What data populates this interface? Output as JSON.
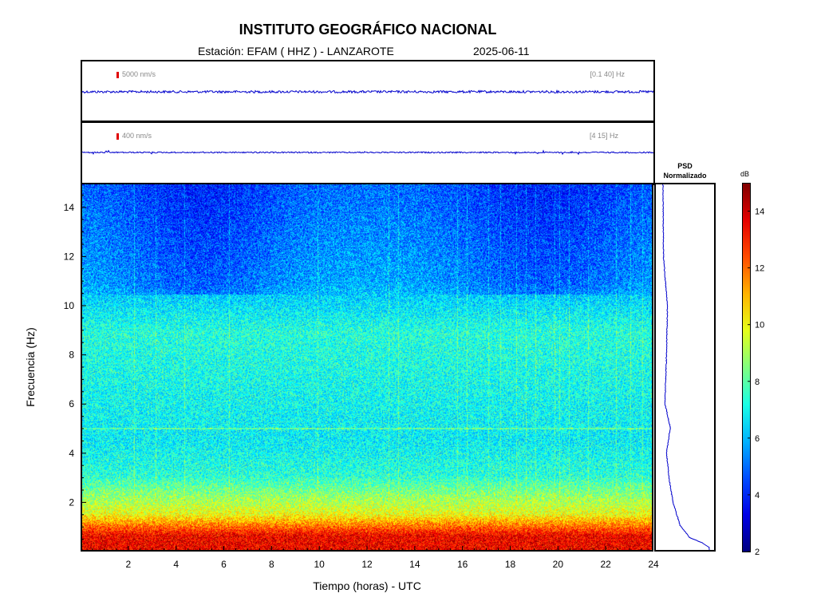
{
  "header": {
    "title": "INSTITUTO GEOGRÁFICO NACIONAL",
    "station": "Estación:  EFAM ( HHZ ) - LANZAROTE",
    "date": "2025-06-11"
  },
  "traces": [
    {
      "scale_label": "5000 nm/s",
      "band_label": "[0.1 40] Hz",
      "color": "#0000cc"
    },
    {
      "scale_label": "400 nm/s",
      "band_label": "[4 15] Hz",
      "color": "#0000cc"
    }
  ],
  "psd": {
    "title_line1": "PSD",
    "title_line2": "Normalizado"
  },
  "colorbar": {
    "unit": "dB",
    "ticks": [
      "2",
      "4",
      "6",
      "8",
      "10",
      "12",
      "14"
    ],
    "range": [
      2,
      15
    ],
    "colormap": "jet"
  },
  "chart_data": {
    "type": "heatmap",
    "xlabel": "Tiempo (horas) - UTC",
    "ylabel": "Frecuencia  (Hz)",
    "xlim": [
      0,
      24
    ],
    "ylim": [
      0,
      15
    ],
    "xticks": [
      "2",
      "4",
      "6",
      "8",
      "10",
      "12",
      "14",
      "16",
      "18",
      "20",
      "22",
      "24"
    ],
    "yticks": [
      "2",
      "4",
      "6",
      "8",
      "10",
      "12",
      "14"
    ],
    "color_range_db": [
      2,
      15
    ],
    "notable_features": [
      {
        "frequency_hz": 5.0,
        "description": "persistent spectral line"
      },
      {
        "frequency_hz_range": [
          0,
          1.5
        ],
        "description": "high energy microseism band"
      }
    ],
    "psd_normalized": {
      "frequency_hz": [
        0.1,
        0.3,
        0.5,
        1,
        2,
        3,
        4,
        5,
        6,
        8,
        10,
        12,
        14,
        15
      ],
      "value": [
        1.0,
        0.85,
        0.6,
        0.4,
        0.25,
        0.17,
        0.12,
        0.2,
        0.09,
        0.12,
        0.14,
        0.06,
        0.05,
        0.05
      ]
    }
  }
}
